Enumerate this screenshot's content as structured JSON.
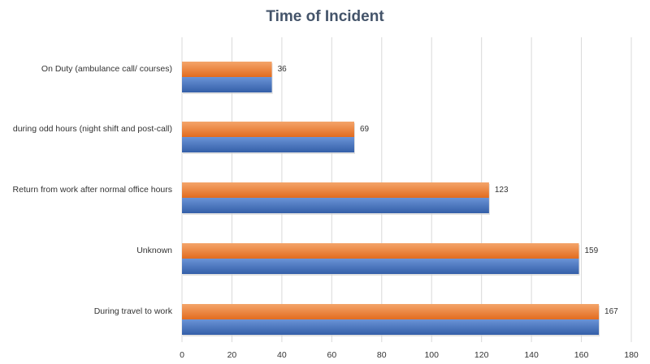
{
  "chart_data": {
    "type": "bar",
    "orientation": "horizontal",
    "title": "Time of Incident",
    "categories": [
      "On Duty (ambulance call/ courses)",
      "during odd hours (night shift and post-call)",
      "Return from work after normal office hours",
      "Unknown",
      "During travel to work"
    ],
    "values": [
      36,
      69,
      123,
      159,
      167
    ],
    "data_labels": [
      "36",
      "69",
      "123",
      "159",
      "167"
    ],
    "xlim": [
      0,
      180
    ],
    "x_ticks": [
      "0",
      "20",
      "40",
      "60",
      "80",
      "100",
      "120",
      "140",
      "160",
      "180"
    ],
    "xlabel": "",
    "ylabel": "",
    "grid": true,
    "legend": "none",
    "colors": {
      "upper": "#ed7d31",
      "lower": "#4472c4",
      "grid": "#d9d9d9"
    }
  }
}
